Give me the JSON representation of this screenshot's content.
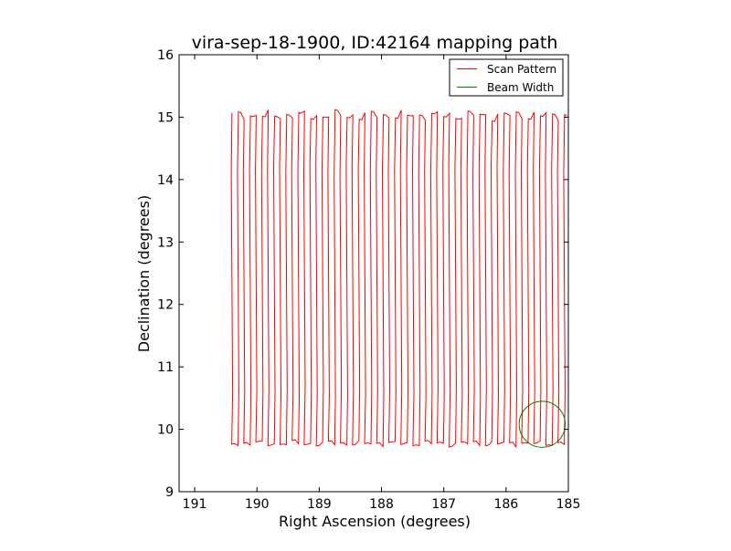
{
  "chart_data": {
    "type": "line",
    "title": "vira-sep-18-1900, ID:42164 mapping path",
    "xlabel": "Right Ascension (degrees)",
    "ylabel": "Declination (degrees)",
    "xlim": [
      191.25,
      185.0
    ],
    "ylim": [
      9,
      16
    ],
    "x_ticks": [
      191,
      190,
      189,
      188,
      187,
      186,
      185
    ],
    "x_tick_labels": [
      "191",
      "190",
      "189",
      "188",
      "187",
      "186",
      "185"
    ],
    "y_ticks": [
      9,
      10,
      11,
      12,
      13,
      14,
      15,
      16
    ],
    "y_tick_labels": [
      "9",
      "10",
      "11",
      "12",
      "13",
      "14",
      "15",
      "16"
    ],
    "legend": {
      "position": "top-right",
      "entries": [
        {
          "label": "Scan Pattern",
          "color": "#ff0000"
        },
        {
          "label": "Beam Width",
          "color": "#008000"
        }
      ]
    },
    "series": [
      {
        "name": "Scan Pattern",
        "color": "#ff0000",
        "style": "vertical zigzag raster",
        "ra_start": 190.4,
        "ra_end": 185.0,
        "ra_step": 0.097,
        "dec_low": 9.77,
        "dec_high": 15.03
      },
      {
        "name": "Beam Width",
        "color": "#008000",
        "shape": "circle",
        "center_ra": 185.42,
        "center_dec": 10.08,
        "radius_deg": 0.37
      }
    ]
  }
}
